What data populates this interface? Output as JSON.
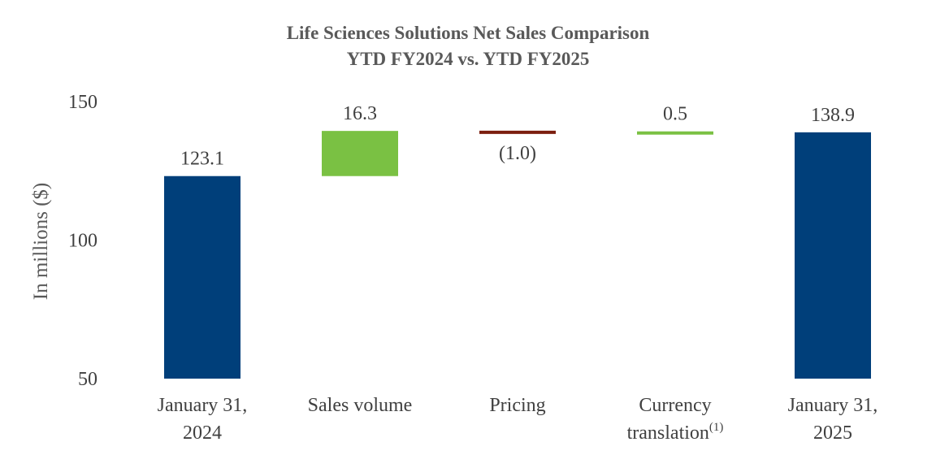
{
  "chart_data": {
    "type": "bar",
    "subtype": "waterfall",
    "title": "Life Sciences Solutions Net Sales Comparison",
    "subtitle": "YTD FY2024 vs. YTD FY2025",
    "ylabel": "In millions ($)",
    "ylim": [
      50,
      150
    ],
    "yticks": [
      50,
      100,
      150
    ],
    "grid": false,
    "categories": [
      {
        "lines": [
          "January 31,",
          "2024"
        ],
        "sup": ""
      },
      {
        "lines": [
          "Sales volume"
        ],
        "sup": ""
      },
      {
        "lines": [
          "Pricing"
        ],
        "sup": ""
      },
      {
        "lines": [
          "Currency",
          "translation"
        ],
        "sup": "(1)"
      },
      {
        "lines": [
          "January 31,",
          "2025"
        ],
        "sup": ""
      }
    ],
    "steps": [
      {
        "kind": "total",
        "value": 123.1,
        "label": "123.1",
        "color": "#003f7a"
      },
      {
        "kind": "delta",
        "value": 16.3,
        "label": "16.3",
        "color": "#7ac143"
      },
      {
        "kind": "delta",
        "value": -1.0,
        "label": "(1.0)",
        "color": "#7b1e0e"
      },
      {
        "kind": "delta",
        "value": 0.5,
        "label": "0.5",
        "color": "#7ac143"
      },
      {
        "kind": "total",
        "value": 138.9,
        "label": "138.9",
        "color": "#003f7a"
      }
    ]
  }
}
